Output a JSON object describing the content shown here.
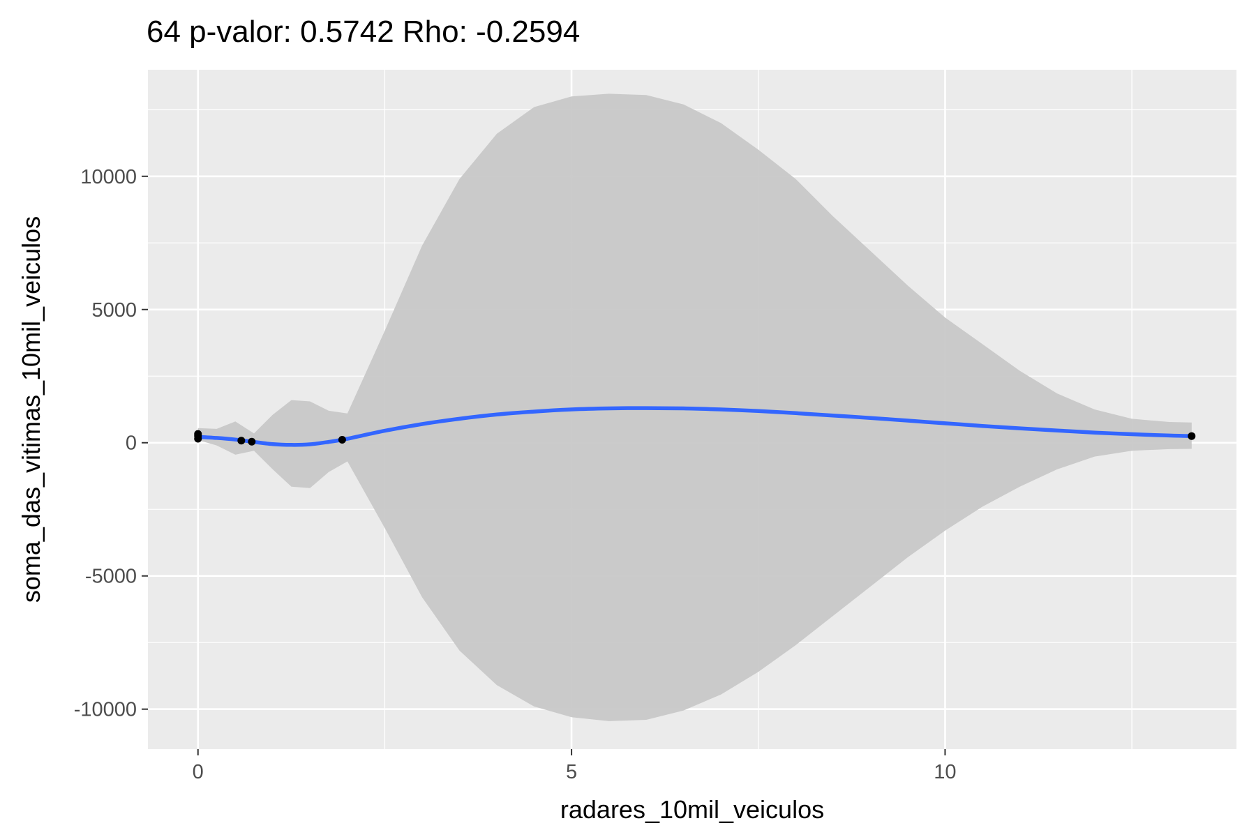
{
  "chart_data": {
    "type": "line",
    "title": "64 p-valor: 0.5742 Rho: -0.2594",
    "xlabel": "radares_10mil_veiculos",
    "ylabel": "soma_das_vitimas_10mil_veiculos",
    "xlim": [
      -0.67,
      13.9
    ],
    "ylim": [
      -11500,
      14000
    ],
    "x_ticks": [
      0,
      5,
      10
    ],
    "x_tick_labels": [
      "0",
      "5",
      "10"
    ],
    "y_ticks": [
      -10000,
      -5000,
      0,
      5000,
      10000
    ],
    "y_tick_labels": [
      "-10000",
      "-5000",
      "0",
      "5000",
      "10000"
    ],
    "grid": true,
    "legend": "none",
    "colors": {
      "panel_background": "#ebebeb",
      "grid": "#ffffff",
      "smooth_line": "#3366ff",
      "ribbon": "#c8c8c8",
      "points": "#000000"
    },
    "points": [
      {
        "x": 0.0,
        "y": 150
      },
      {
        "x": 0.0,
        "y": 260
      },
      {
        "x": 0.0,
        "y": 330
      },
      {
        "x": 0.58,
        "y": 80
      },
      {
        "x": 0.72,
        "y": 40
      },
      {
        "x": 1.93,
        "y": 110
      },
      {
        "x": 13.3,
        "y": 250
      }
    ],
    "smooth": {
      "x": [
        0.0,
        0.25,
        0.5,
        0.75,
        1.0,
        1.25,
        1.5,
        1.75,
        2.0,
        2.5,
        3.0,
        3.5,
        4.0,
        4.5,
        5.0,
        5.5,
        6.0,
        6.5,
        7.0,
        7.5,
        8.0,
        8.5,
        9.0,
        9.5,
        10.0,
        10.5,
        11.0,
        11.5,
        12.0,
        12.5,
        13.0,
        13.3
      ],
      "y": [
        220,
        180,
        120,
        30,
        -50,
        -80,
        -60,
        30,
        150,
        450,
        700,
        900,
        1060,
        1170,
        1250,
        1290,
        1300,
        1290,
        1250,
        1190,
        1110,
        1020,
        930,
        830,
        730,
        630,
        540,
        460,
        380,
        320,
        270,
        250
      ],
      "lower": [
        100,
        -100,
        -450,
        -300,
        -1000,
        -1650,
        -1700,
        -1100,
        -700,
        -3200,
        -5800,
        -7800,
        -9100,
        -9900,
        -10300,
        -10450,
        -10400,
        -10050,
        -9450,
        -8600,
        -7600,
        -6500,
        -5400,
        -4300,
        -3300,
        -2400,
        -1650,
        -1000,
        -520,
        -300,
        -240,
        -230
      ],
      "upper": [
        550,
        520,
        800,
        350,
        1050,
        1600,
        1550,
        1200,
        1100,
        4200,
        7400,
        9900,
        11600,
        12600,
        13000,
        13100,
        13050,
        12700,
        12000,
        11000,
        9900,
        8500,
        7200,
        5900,
        4700,
        3700,
        2700,
        1850,
        1250,
        900,
        780,
        760
      ]
    }
  }
}
